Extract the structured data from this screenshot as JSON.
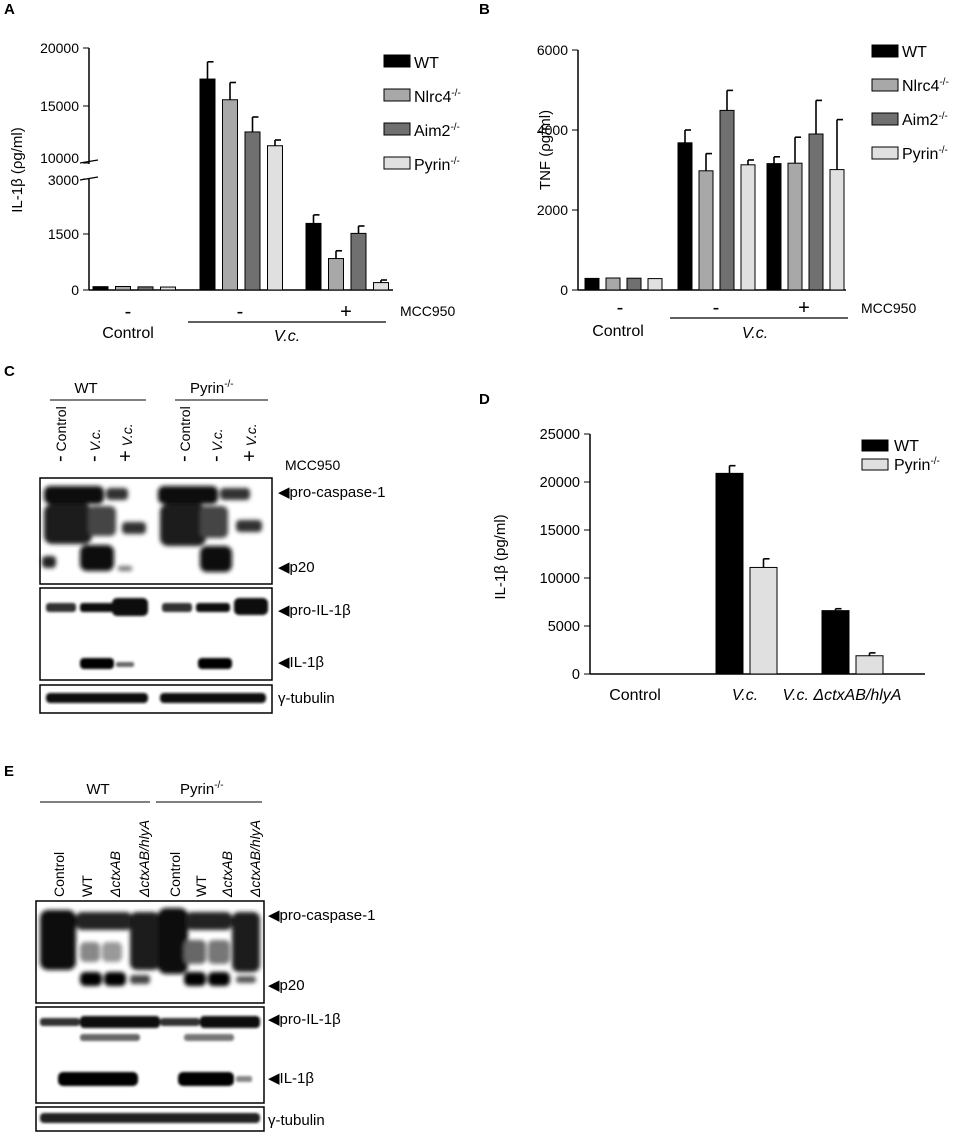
{
  "colors": {
    "WT": "#000000",
    "Nlrc4": "#a8a8a8",
    "Aim2": "#707070",
    "Pyrin": "#e0e0e0"
  },
  "panel_letters": {
    "a": "A",
    "b": "B",
    "c": "C",
    "d": "D",
    "e": "E"
  },
  "chart_data": [
    {
      "panel": "A",
      "type": "bar",
      "ylabel": "IL-1β (ρg/ml)",
      "y_ticks_upper": [
        "20000",
        "15000",
        "10000"
      ],
      "y_ticks_lower": [
        "3000",
        "1500",
        "0"
      ],
      "broken_axis": {
        "lower": [
          0,
          3000
        ],
        "upper": [
          10000,
          20000
        ]
      },
      "legend": [
        "WT",
        "Nlrc4-/-",
        "Aim2-/-",
        "Pyrin-/-"
      ],
      "groups": [
        "Control",
        "V.c.",
        "V.c."
      ],
      "inhibitor": {
        "label": "MCC950",
        "signs": [
          "-",
          "-",
          "+"
        ]
      },
      "group_labels": {
        "control": "Control",
        "vc": "V.c."
      },
      "series": [
        {
          "name": "WT",
          "values": [
            90,
            17300,
            1800
          ],
          "errors": [
            0,
            1500,
            230
          ]
        },
        {
          "name": "Nlrc4-/-",
          "values": [
            95,
            15500,
            850
          ],
          "errors": [
            0,
            1500,
            210
          ]
        },
        {
          "name": "Aim2-/-",
          "values": [
            85,
            12700,
            1530
          ],
          "errors": [
            0,
            1300,
            200
          ]
        },
        {
          "name": "Pyrin-/-",
          "values": [
            80,
            11500,
            200
          ],
          "errors": [
            0,
            500,
            70
          ]
        }
      ]
    },
    {
      "panel": "B",
      "type": "bar",
      "ylabel": "TNF   (ρg/ml)",
      "y_ticks": [
        "6000",
        "4000",
        "2000",
        "0"
      ],
      "ylim": [
        0,
        6000
      ],
      "legend": [
        "WT",
        "Nlrc4-/-",
        "Aim2-/-",
        "Pyrin-/-"
      ],
      "groups": [
        "Control",
        "V.c.",
        "V.c."
      ],
      "inhibitor": {
        "label": "MCC950",
        "signs": [
          "-",
          "-",
          "+"
        ]
      },
      "group_labels": {
        "control": "Control",
        "vc": "V.c."
      },
      "series": [
        {
          "name": "WT",
          "values": [
            290,
            3680,
            3160
          ],
          "errors": [
            0,
            320,
            170
          ]
        },
        {
          "name": "Nlrc4-/-",
          "values": [
            300,
            2980,
            3170
          ],
          "errors": [
            0,
            430,
            650
          ]
        },
        {
          "name": "Aim2-/-",
          "values": [
            295,
            4490,
            3900
          ],
          "errors": [
            0,
            500,
            840
          ]
        },
        {
          "name": "Pyrin-/-",
          "values": [
            285,
            3130,
            3010
          ],
          "errors": [
            0,
            120,
            1250
          ]
        }
      ]
    },
    {
      "panel": "D",
      "type": "bar",
      "ylabel": "IL-1β (pg/ml)",
      "y_ticks": [
        "25000",
        "20000",
        "15000",
        "10000",
        "5000",
        "0"
      ],
      "ylim": [
        0,
        25000
      ],
      "categories": [
        "Control",
        "V.c.",
        "V.c. ΔctxAB/hlyA"
      ],
      "legend": [
        "WT",
        "Pyrin-/-"
      ],
      "series": [
        {
          "name": "WT",
          "values": [
            0,
            20900,
            6600
          ],
          "errors": [
            0,
            800,
            200
          ]
        },
        {
          "name": "Pyrin-/-",
          "values": [
            0,
            11100,
            1900
          ],
          "errors": [
            0,
            900,
            300
          ]
        }
      ]
    }
  ],
  "blot_c": {
    "groups": [
      "WT",
      "Pyrin-/-"
    ],
    "lanes": [
      "Control",
      "V.c.",
      "V.c."
    ],
    "signs": [
      "-",
      "-",
      "+"
    ],
    "inhibitor": "MCC950",
    "labels": [
      "pro-caspase-1",
      "p20",
      "pro-IL-1β",
      "IL-1β",
      "γ-tubulin"
    ]
  },
  "blot_e": {
    "groups": [
      "WT",
      "Pyrin-/-"
    ],
    "lanes": [
      "Control",
      "WT",
      "ΔctxAB",
      "ΔctxAB/hlyA"
    ],
    "labels": [
      "pro-caspase-1",
      "p20",
      "pro-IL-1β",
      "IL-1β",
      "γ-tubulin"
    ]
  }
}
